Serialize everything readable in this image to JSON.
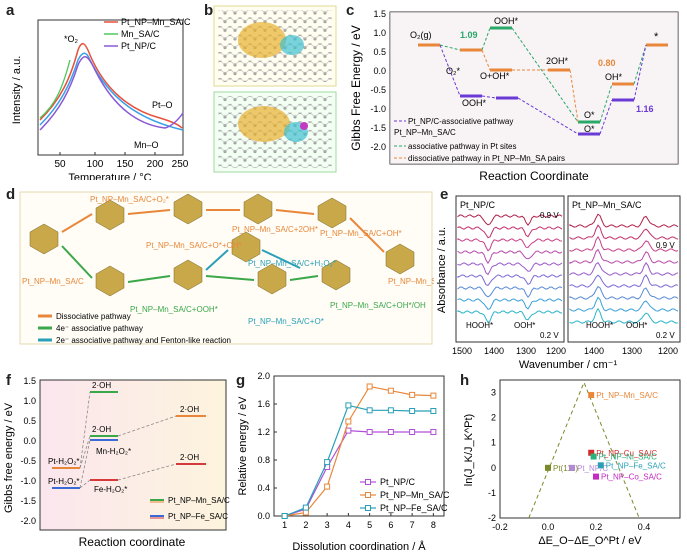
{
  "panels": {
    "a": {
      "label": "a",
      "xlabel": "Temperature / °C",
      "ylabel": "Intensity / a.u.",
      "xticks": [
        "50",
        "100",
        "150",
        "200",
        "250"
      ],
      "legend": [
        "Pt_NP–Mn_SA/C",
        "Mn_SA/C",
        "Pt_NP/C"
      ],
      "annotations": {
        "o2": "*O₂",
        "pto": "Pt–O",
        "mno": "Mn–O"
      }
    },
    "b": {
      "label": "b"
    },
    "c": {
      "label": "c",
      "ylabel": "Gibbs Free Energy / eV",
      "xlabel": "Reaction Coordinate",
      "yticks": [
        "1.5",
        "1.0",
        "0.5",
        "0.0",
        "-0.5",
        "-1.0",
        "-1.5",
        "-2.0"
      ],
      "states": {
        "o2g": "O₂(g)",
        "o2s": "O₂*",
        "oohs": "OOH*",
        "ooh_top": "OOH*",
        "ooh": "O+OH*",
        "twooh": "2OH*",
        "os1": "O*",
        "os2": "O*",
        "ohs": "OH*",
        "star": "*"
      },
      "values": {
        "v109": "1.09",
        "v080": "0.80",
        "v116": "1.16"
      },
      "legend": {
        "l1": "Pt_NP/C-associative pathway",
        "l2": "Pt_NP–Mn_SA/C",
        "l3": "associative pathway in Pt sites",
        "l4": "dissociative pathway in Pt_NP–Mn_SA pairs"
      }
    },
    "d": {
      "label": "d",
      "states": {
        "s1": "Pt_NP–Mn_SA/C+O₂*",
        "s2": "Pt_NP–Mn_SA/C+O*+OH*",
        "s3": "Pt_NP–Mn_SA/C+2OH*",
        "s4": "Pt_NP–Mn_SA/C+OH*",
        "s5": "Pt_NP–Mn_SA/C",
        "s6": "Pt_NP–Mn_SA/C+H₂O₂*",
        "s7": "Pt_NP–Mn_SA/C+OOH*",
        "s8": "Pt_NP–Mn_SA/C+O*",
        "s9": "Pt_NP–Mn_SA/C+OH*/OH",
        "s10": "Pt_NP–Mn_SA/C"
      },
      "legend": {
        "dis": "Dissociative pathway",
        "e4": "4e⁻ associative pathway",
        "e2": "2e⁻ associative pathway and Fenton-like reaction"
      }
    },
    "e": {
      "label": "e",
      "ylabel": "Absorbance / a.u.",
      "xlabel": "Wavenumber / cm⁻¹",
      "left_title": "Pt_NP/C",
      "right_title": "Pt_NP–Mn_SA/C",
      "v09": "0.9 V",
      "v02": "0.2 V",
      "v09r": "0.9 V",
      "v02r": "0.2 V",
      "hooh": "HOOH*",
      "ooh": "OOH*",
      "hoohr": "HOOH*",
      "oohr": "OOH*",
      "xticks_left": [
        "1500",
        "1400",
        "1300",
        "1200"
      ],
      "xticks_right": [
        "1400",
        "1300",
        "1200"
      ]
    },
    "f": {
      "label": "f",
      "ylabel": "Gibbs free energy / eV",
      "xlabel": "Reaction coordinate",
      "yticks": [
        "1.5",
        "1.0",
        "0.5",
        "0.0",
        "-0.5",
        "-1.0",
        "-1.5",
        "-2.0"
      ],
      "states": {
        "ptmn": "Pt-H₂O₂*",
        "ptfe": "Pt-H₂O₂*",
        "mn": "Mn-H₂O₂*",
        "fe": "Fe-H₂O₂*",
        "oh1": "2·OH",
        "oh2": "2·OH",
        "oh3": "2·OH",
        "oh4": "2·OH"
      },
      "legend": [
        "Pt_NP–Mn_SA/C",
        "Pt_NP–Fe_SA/C"
      ]
    },
    "h": {
      "label": "h",
      "ylabel": "ln(J_K/J_K^Pt)",
      "xlabel": "ΔE_O−ΔE_O^Pt / eV",
      "xticks": [
        "-0.2",
        "0.0",
        "0.2",
        "0.4"
      ],
      "yticks": [
        "3",
        "2",
        "1",
        "0",
        "-1",
        "-2"
      ]
    }
  },
  "chart_data": [
    {
      "panel": "g",
      "type": "line",
      "title": "",
      "xlabel": "Dissolution coordination / Å",
      "ylabel": "Relative energy / eV",
      "xlim": [
        0.5,
        8.5
      ],
      "ylim": [
        0,
        2.0
      ],
      "xticks": [
        1,
        2,
        3,
        4,
        5,
        6,
        7,
        8
      ],
      "yticks": [
        0.0,
        0.4,
        0.8,
        1.2,
        1.6,
        2.0
      ],
      "series": [
        {
          "name": "Pt_NP/C",
          "color": "#b04fd6",
          "marker": "square",
          "x": [
            1,
            2,
            3,
            4,
            5,
            6,
            7,
            8
          ],
          "y": [
            0.0,
            0.1,
            0.7,
            1.22,
            1.2,
            1.2,
            1.2,
            1.2
          ]
        },
        {
          "name": "Pt_NP–Mn_SA/C",
          "color": "#e8873a",
          "marker": "square",
          "x": [
            1,
            2,
            3,
            4,
            5,
            6,
            7,
            8
          ],
          "y": [
            0.0,
            0.05,
            0.42,
            1.35,
            1.85,
            1.79,
            1.73,
            1.72
          ]
        },
        {
          "name": "Pt_NP–Fe_SA/C",
          "color": "#2aa0b8",
          "marker": "square",
          "x": [
            1,
            2,
            3,
            4,
            5,
            6,
            7,
            8
          ],
          "y": [
            0.0,
            0.12,
            0.77,
            1.58,
            1.51,
            1.51,
            1.5,
            1.5
          ]
        }
      ]
    },
    {
      "panel": "h",
      "type": "scatter",
      "xlabel": "ΔE_O−ΔE_O^Pt / eV",
      "ylabel": "ln(J_K/J_K^Pt)",
      "xlim": [
        -0.2,
        0.55
      ],
      "ylim": [
        -2.0,
        3.5
      ],
      "points": [
        {
          "name": "Pt(111)",
          "x": 0.0,
          "y": 0.0,
          "color": "#7a8a2a"
        },
        {
          "name": "Pt_NP/C",
          "x": 0.1,
          "y": 0.0,
          "color": "#b48ad6"
        },
        {
          "name": "Pt_NP–Mn_SA/C",
          "x": 0.18,
          "y": 2.9,
          "color": "#e8873a"
        },
        {
          "name": "Pt_NP–Cu_SA/C",
          "x": 0.18,
          "y": 0.6,
          "color": "#d42a2a"
        },
        {
          "name": "Pt_NP–Ni_SA/C",
          "x": 0.19,
          "y": 0.45,
          "color": "#2ab07a"
        },
        {
          "name": "Pt_NP–Fe_SA/C",
          "x": 0.22,
          "y": 0.1,
          "color": "#2aa0b8"
        },
        {
          "name": "Pt_NP–Co_SA/C",
          "x": 0.2,
          "y": -0.35,
          "color": "#c42ac4"
        }
      ]
    }
  ]
}
